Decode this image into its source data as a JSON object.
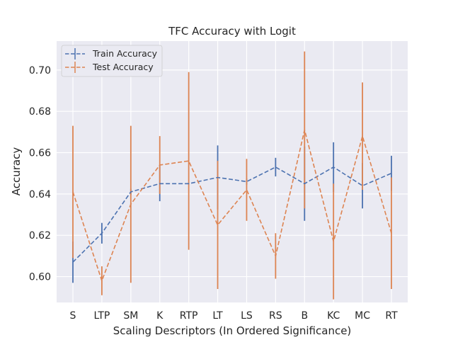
{
  "chart_data": {
    "type": "line",
    "title": "TFC Accuracy with Logit",
    "xlabel": "Scaling Descriptors (In Ordered Significance)",
    "ylabel": "Accuracy",
    "categories": [
      "S",
      "LTP",
      "SM",
      "K",
      "RTP",
      "LT",
      "LS",
      "RS",
      "B",
      "KC",
      "MC",
      "RT"
    ],
    "ylim": [
      0.5875,
      0.714
    ],
    "yticks": [
      0.6,
      0.62,
      0.64,
      0.66,
      0.68,
      0.7
    ],
    "ytick_labels": [
      "0.60",
      "0.62",
      "0.64",
      "0.66",
      "0.68",
      "0.70"
    ],
    "grid": true,
    "legend_position": "top-left",
    "series": [
      {
        "name": "Train Accuracy",
        "color": "#4c72b0",
        "values": [
          0.607,
          0.621,
          0.641,
          0.645,
          0.645,
          0.648,
          0.646,
          0.653,
          0.645,
          0.653,
          0.644,
          0.65
        ],
        "errors": [
          0.01,
          0.005,
          0.0015,
          0.0085,
          0.0005,
          0.0155,
          0.0015,
          0.0045,
          0.018,
          0.012,
          0.011,
          0.0085
        ]
      },
      {
        "name": "Test Accuracy",
        "color": "#dd8452",
        "values": [
          0.641,
          0.598,
          0.635,
          0.654,
          0.656,
          0.625,
          0.642,
          0.61,
          0.671,
          0.617,
          0.668,
          0.621
        ],
        "errors": [
          0.032,
          0.007,
          0.038,
          0.014,
          0.043,
          0.031,
          0.015,
          0.011,
          0.038,
          0.028,
          0.026,
          0.027
        ]
      }
    ]
  }
}
